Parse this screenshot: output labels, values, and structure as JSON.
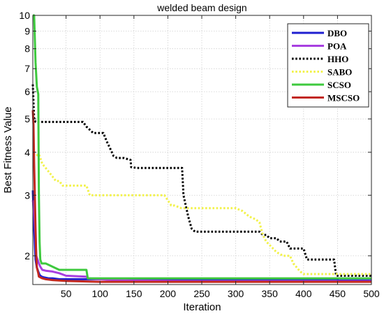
{
  "chart_data": {
    "type": "line",
    "title": "welded beam design",
    "xlabel": "Iteration",
    "ylabel": "Best Fitness Value",
    "xlim": [
      1,
      500
    ],
    "ylim": [
      1.65,
      10
    ],
    "y_scale": "log",
    "grid": true,
    "x_ticks": [
      50,
      100,
      150,
      200,
      250,
      300,
      350,
      400,
      450,
      500
    ],
    "y_ticks": [
      2,
      3,
      4,
      5,
      6,
      7,
      8,
      9,
      10
    ],
    "legend_position": "top-right",
    "series": [
      {
        "name": "DBO",
        "color": "#1f1fd0",
        "dash": "solid",
        "x": [
          1,
          3,
          5,
          7,
          9,
          11,
          14,
          18,
          24,
          30,
          40,
          60,
          80,
          120,
          200,
          300,
          400,
          450,
          451,
          500
        ],
        "y": [
          3.1,
          2.4,
          1.95,
          1.85,
          1.8,
          1.76,
          1.74,
          1.73,
          1.72,
          1.72,
          1.71,
          1.71,
          1.71,
          1.71,
          1.71,
          1.71,
          1.71,
          1.71,
          1.695,
          1.695
        ]
      },
      {
        "name": "POA",
        "color": "#a83fe0",
        "dash": "solid",
        "x": [
          1,
          3,
          5,
          6,
          8,
          10,
          12,
          15,
          20,
          30,
          40,
          50,
          80,
          82,
          100,
          120,
          150,
          200,
          250,
          500
        ],
        "y": [
          2.9,
          2.7,
          2.3,
          2.0,
          1.95,
          1.9,
          1.86,
          1.82,
          1.81,
          1.8,
          1.78,
          1.75,
          1.74,
          1.72,
          1.71,
          1.7,
          1.695,
          1.69,
          1.685,
          1.685
        ]
      },
      {
        "name": "HHO",
        "color": "#000000",
        "dash": "dotted",
        "x": [
          1,
          3,
          5,
          75,
          80,
          90,
          105,
          110,
          115,
          120,
          125,
          135,
          145,
          146,
          155,
          170,
          221,
          223,
          230,
          235,
          240,
          315,
          335,
          340,
          345,
          350,
          360,
          365,
          370,
          375,
          380,
          390,
          400,
          405,
          420,
          445,
          448,
          500
        ],
        "y": [
          6.3,
          5.0,
          4.9,
          4.9,
          4.75,
          4.55,
          4.55,
          4.3,
          4.1,
          3.9,
          3.85,
          3.85,
          3.8,
          3.62,
          3.6,
          3.6,
          3.6,
          3.0,
          2.6,
          2.4,
          2.35,
          2.35,
          2.35,
          2.3,
          2.3,
          2.25,
          2.25,
          2.2,
          2.2,
          2.2,
          2.1,
          2.1,
          2.1,
          1.95,
          1.95,
          1.95,
          1.75,
          1.75
        ]
      },
      {
        "name": "SABO",
        "color": "#f2f24a",
        "dash": "dotted",
        "x": [
          1,
          5,
          10,
          15,
          20,
          25,
          30,
          35,
          40,
          45,
          50,
          80,
          85,
          195,
          205,
          210,
          220,
          300,
          310,
          320,
          330,
          335,
          340,
          345,
          355,
          360,
          370,
          380,
          385,
          390,
          395,
          400,
          500
        ],
        "y": [
          3.9,
          3.9,
          3.95,
          3.7,
          3.6,
          3.5,
          3.4,
          3.3,
          3.3,
          3.2,
          3.2,
          3.2,
          3.0,
          3.0,
          2.8,
          2.8,
          2.75,
          2.75,
          2.7,
          2.6,
          2.55,
          2.5,
          2.3,
          2.2,
          2.1,
          2.05,
          2.0,
          2.0,
          1.9,
          1.85,
          1.8,
          1.77,
          1.77
        ]
      },
      {
        "name": "SCSO",
        "color": "#3ec93e",
        "dash": "solid",
        "x": [
          1,
          3,
          5,
          7,
          9,
          10,
          11,
          12,
          14,
          18,
          20,
          40,
          80,
          82,
          500
        ],
        "y": [
          10,
          10,
          7.3,
          6.2,
          5.9,
          3.0,
          2.2,
          1.95,
          1.9,
          1.9,
          1.9,
          1.82,
          1.82,
          1.72,
          1.72
        ]
      },
      {
        "name": "MSCSO",
        "color": "#c2281f",
        "dash": "solid",
        "x": [
          1,
          2,
          3,
          4,
          5,
          6,
          7,
          9,
          10,
          15,
          20,
          30,
          50,
          100,
          150,
          200,
          250,
          300,
          500
        ],
        "y": [
          5.3,
          4.8,
          3.7,
          3.0,
          2.4,
          2.0,
          1.85,
          1.78,
          1.74,
          1.72,
          1.71,
          1.7,
          1.69,
          1.68,
          1.68,
          1.68,
          1.68,
          1.68,
          1.68
        ]
      }
    ]
  }
}
